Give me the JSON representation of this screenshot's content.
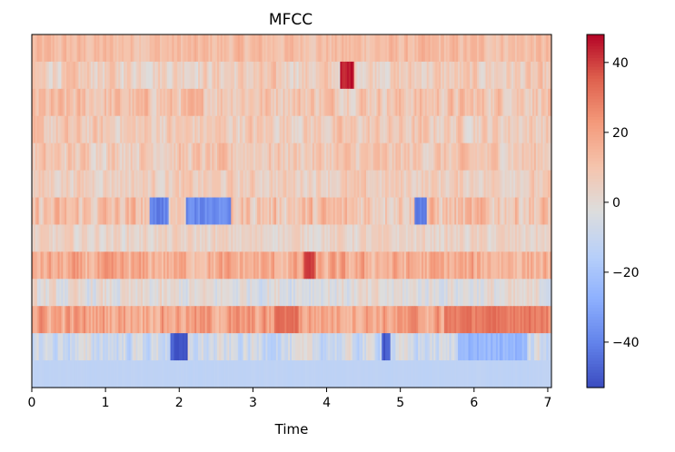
{
  "chart_data": {
    "type": "heatmap",
    "title": "MFCC",
    "xlabel": "Time",
    "ylabel": "",
    "xlim": [
      0,
      7.05
    ],
    "x_ticks": [
      0,
      1,
      2,
      3,
      4,
      5,
      6,
      7
    ],
    "x_tick_labels": [
      "0",
      "1",
      "2",
      "3",
      "4",
      "5",
      "6",
      "7"
    ],
    "n_coefficients": 13,
    "colormap": "coolwarm",
    "colorbar": {
      "range": [
        -53,
        48
      ],
      "ticks": [
        40,
        20,
        0,
        -20,
        -40
      ],
      "tick_labels": [
        "40",
        "20",
        "0",
        "−20",
        "−40"
      ]
    },
    "row_profiles_top_to_bottom": [
      {
        "index": 0,
        "mean": 12,
        "spread": 9
      },
      {
        "index": 1,
        "mean": 6,
        "spread": 12
      },
      {
        "index": 2,
        "mean": 10,
        "spread": 13
      },
      {
        "index": 3,
        "mean": 7,
        "spread": 12
      },
      {
        "index": 4,
        "mean": 8,
        "spread": 12
      },
      {
        "index": 5,
        "mean": 6,
        "spread": 10
      },
      {
        "index": 6,
        "mean": 10,
        "spread": 16
      },
      {
        "index": 7,
        "mean": 3,
        "spread": 9
      },
      {
        "index": 8,
        "mean": 16,
        "spread": 14
      },
      {
        "index": 9,
        "mean": -2,
        "spread": 12
      },
      {
        "index": 10,
        "mean": 20,
        "spread": 14
      },
      {
        "index": 11,
        "mean": -8,
        "spread": 14
      },
      {
        "index": 12,
        "mean": -13,
        "spread": 1
      }
    ],
    "notable_regions": [
      {
        "row": 1,
        "x": [
          4.2,
          4.35
        ],
        "value": 45
      },
      {
        "row": 6,
        "x": [
          1.6,
          1.85
        ],
        "value": -40
      },
      {
        "row": 6,
        "x": [
          2.1,
          2.7
        ],
        "value": -38
      },
      {
        "row": 6,
        "x": [
          5.2,
          5.35
        ],
        "value": -40
      },
      {
        "row": 8,
        "x": [
          3.7,
          3.85
        ],
        "value": 38
      },
      {
        "row": 10,
        "x": [
          3.3,
          3.6
        ],
        "value": 32
      },
      {
        "row": 10,
        "x": [
          5.6,
          7.0
        ],
        "value": 30
      },
      {
        "row": 11,
        "x": [
          1.9,
          2.1
        ],
        "value": -50
      },
      {
        "row": 11,
        "x": [
          4.75,
          4.85
        ],
        "value": -50
      },
      {
        "row": 11,
        "x": [
          5.8,
          6.7
        ],
        "value": -25
      }
    ]
  }
}
